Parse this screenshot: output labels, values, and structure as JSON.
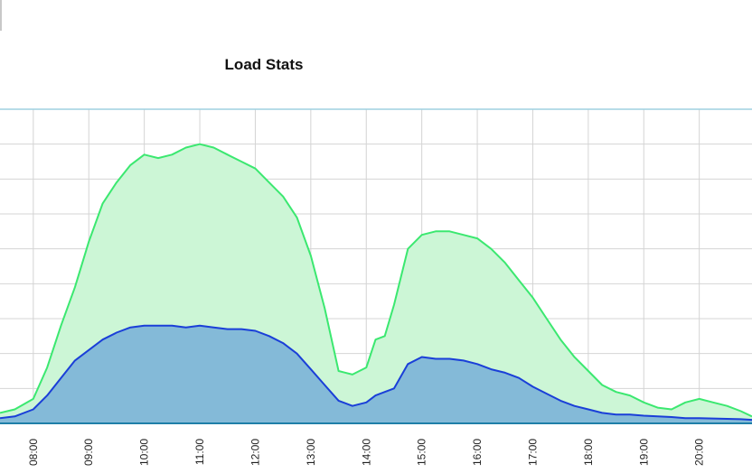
{
  "chart_data": {
    "type": "area",
    "title": "Load Stats",
    "xlabel": "",
    "ylabel": "",
    "grid": true,
    "x_tick_labels": [
      "08:00",
      "09:00",
      "10:00",
      "11:00",
      "12:00",
      "13:00",
      "14:00",
      "15:00",
      "16:00",
      "17:00",
      "18:00",
      "19:00",
      "20:00"
    ],
    "x_range_hours": [
      7.4,
      20.95
    ],
    "y_range": [
      0,
      9
    ],
    "colors": {
      "series_a_line": "#3be870",
      "series_a_fill": "#ccf6d6",
      "series_b_line": "#1a3fd8",
      "series_b_fill": "#7fb6d8",
      "axis_line": "#9fd0e0",
      "grid": "#d4d4d4"
    },
    "series": [
      {
        "x": [
          "07:24",
          "07:40",
          "08:00",
          "08:15",
          "08:30",
          "08:45",
          "09:00",
          "09:15",
          "09:30",
          "09:45",
          "10:00",
          "10:15",
          "10:30",
          "10:45",
          "11:00",
          "11:15",
          "11:30",
          "11:45",
          "12:00",
          "12:15",
          "12:30",
          "12:45",
          "13:00",
          "13:15",
          "13:30",
          "13:45",
          "14:00",
          "14:10",
          "14:20",
          "14:30",
          "14:45",
          "15:00",
          "15:15",
          "15:30",
          "15:45",
          "16:00",
          "16:15",
          "16:30",
          "16:45",
          "17:00",
          "17:15",
          "17:30",
          "17:45",
          "18:00",
          "18:15",
          "18:30",
          "18:45",
          "19:00",
          "19:15",
          "19:30",
          "19:45",
          "20:00",
          "20:15",
          "20:30",
          "20:45",
          "20:57"
        ],
        "y": [
          0.3,
          0.4,
          0.7,
          1.6,
          2.8,
          3.9,
          5.2,
          6.3,
          6.9,
          7.4,
          7.7,
          7.6,
          7.7,
          7.9,
          8.0,
          7.9,
          7.7,
          7.5,
          7.3,
          6.9,
          6.5,
          5.9,
          4.8,
          3.3,
          1.5,
          1.4,
          1.6,
          2.4,
          2.5,
          3.4,
          5.0,
          5.4,
          5.5,
          5.5,
          5.4,
          5.3,
          5.0,
          4.6,
          4.1,
          3.6,
          3.0,
          2.4,
          1.9,
          1.5,
          1.1,
          0.9,
          0.8,
          0.6,
          0.45,
          0.4,
          0.6,
          0.7,
          0.6,
          0.5,
          0.35,
          0.2
        ]
      },
      {
        "x": [
          "07:24",
          "07:40",
          "08:00",
          "08:15",
          "08:30",
          "08:45",
          "09:00",
          "09:15",
          "09:30",
          "09:45",
          "10:00",
          "10:15",
          "10:30",
          "10:45",
          "11:00",
          "11:15",
          "11:30",
          "11:45",
          "12:00",
          "12:15",
          "12:30",
          "12:45",
          "13:00",
          "13:15",
          "13:30",
          "13:45",
          "14:00",
          "14:10",
          "14:20",
          "14:30",
          "14:45",
          "15:00",
          "15:15",
          "15:30",
          "15:45",
          "16:00",
          "16:15",
          "16:30",
          "16:45",
          "17:00",
          "17:15",
          "17:30",
          "17:45",
          "18:00",
          "18:15",
          "18:30",
          "18:45",
          "19:00",
          "19:15",
          "19:30",
          "19:45",
          "20:00",
          "20:15",
          "20:30",
          "20:45",
          "20:57"
        ],
        "y": [
          0.15,
          0.2,
          0.4,
          0.8,
          1.3,
          1.8,
          2.1,
          2.4,
          2.6,
          2.75,
          2.8,
          2.8,
          2.8,
          2.75,
          2.8,
          2.75,
          2.7,
          2.7,
          2.65,
          2.5,
          2.3,
          2.0,
          1.55,
          1.1,
          0.65,
          0.5,
          0.6,
          0.8,
          0.9,
          1.0,
          1.7,
          1.9,
          1.85,
          1.85,
          1.8,
          1.7,
          1.55,
          1.45,
          1.3,
          1.05,
          0.85,
          0.65,
          0.5,
          0.4,
          0.3,
          0.25,
          0.25,
          0.22,
          0.2,
          0.18,
          0.15,
          0.15,
          0.14,
          0.13,
          0.12,
          0.1
        ]
      }
    ]
  }
}
